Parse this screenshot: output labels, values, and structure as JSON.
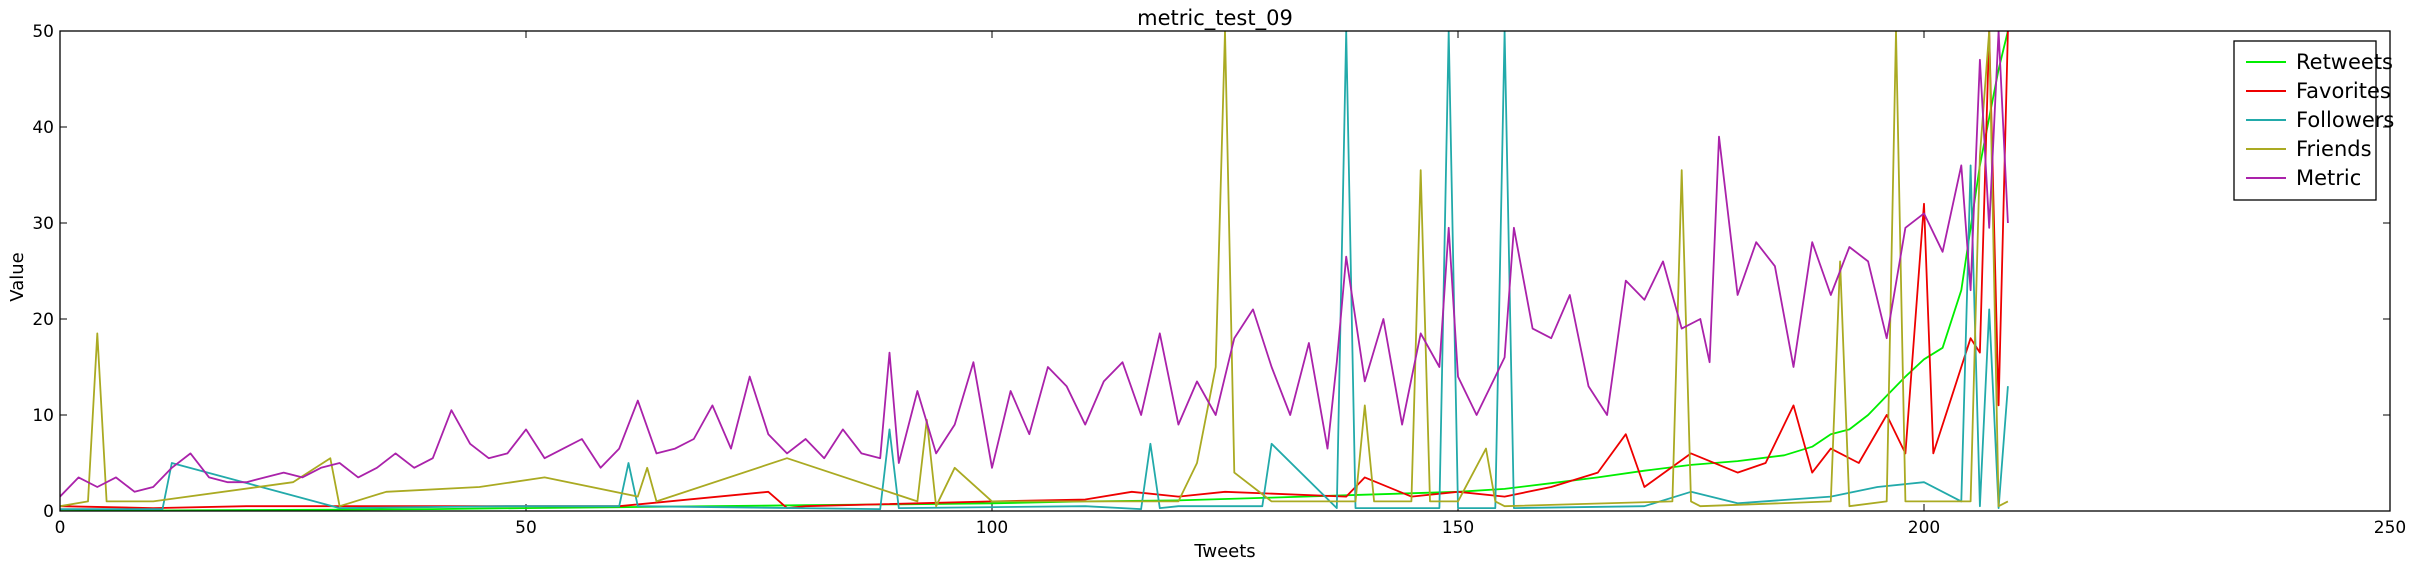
{
  "chart_data": {
    "type": "line",
    "title": "metric_test_09",
    "xlabel": "Tweets",
    "ylabel": "Value",
    "xlim": [
      0,
      250
    ],
    "ylim": [
      0,
      50
    ],
    "x_ticks": [
      0,
      50,
      100,
      150,
      200,
      250
    ],
    "y_ticks": [
      0,
      10,
      20,
      30,
      40,
      50
    ],
    "grid": false,
    "legend_position": "top-right",
    "series": [
      {
        "name": "Retweets",
        "color": "#00ee00",
        "x": [
          0,
          10,
          20,
          30,
          40,
          50,
          60,
          70,
          80,
          90,
          100,
          110,
          120,
          130,
          140,
          150,
          155,
          160,
          165,
          170,
          175,
          180,
          185,
          188,
          190,
          192,
          194,
          196,
          198,
          200,
          202,
          204,
          206,
          208,
          209
        ],
        "y": [
          0.0,
          0.05,
          0.1,
          0.15,
          0.2,
          0.3,
          0.4,
          0.5,
          0.6,
          0.7,
          0.8,
          1.0,
          1.1,
          1.4,
          1.7,
          2.0,
          2.3,
          2.9,
          3.5,
          4.2,
          4.8,
          5.2,
          5.8,
          6.7,
          8.0,
          8.5,
          10.0,
          12.0,
          14.0,
          15.8,
          17.0,
          23.0,
          36.0,
          46.0,
          50.0
        ]
      },
      {
        "name": "Favorites",
        "color": "#ee0000",
        "x": [
          0,
          10,
          20,
          40,
          60,
          76,
          78,
          80,
          100,
          110,
          115,
          120,
          125,
          138,
          140,
          145,
          150,
          155,
          160,
          165,
          168,
          170,
          175,
          180,
          183,
          186,
          188,
          190,
          193,
          196,
          198,
          200,
          201,
          203,
          205,
          206,
          207,
          208,
          209
        ],
        "y": [
          0.5,
          0.3,
          0.5,
          0.5,
          0.5,
          2.0,
          0.3,
          0.5,
          1.0,
          1.2,
          2.0,
          1.5,
          2.0,
          1.5,
          3.5,
          1.5,
          2.0,
          1.5,
          2.5,
          4.0,
          8.0,
          2.5,
          6.0,
          4.0,
          5.0,
          11.0,
          4.0,
          6.5,
          5.0,
          10.0,
          6.0,
          32.0,
          6.0,
          12.0,
          18.0,
          16.5,
          50.0,
          11.0,
          50.0
        ]
      },
      {
        "name": "Followers",
        "color": "#22aaaa",
        "x": [
          0,
          11,
          12,
          30,
          48,
          60,
          61,
          62,
          88,
          89,
          90,
          110,
          116,
          117,
          118,
          120,
          129,
          130,
          137,
          138,
          139,
          148,
          149,
          150,
          154,
          155,
          156,
          170,
          175,
          180,
          190,
          195,
          200,
          204,
          205,
          206,
          207,
          208,
          209
        ],
        "y": [
          0.2,
          0.2,
          5.0,
          0.3,
          0.5,
          0.5,
          5.0,
          0.5,
          0.2,
          8.5,
          0.3,
          0.5,
          0.2,
          7.0,
          0.3,
          0.5,
          0.5,
          7.0,
          0.3,
          50.0,
          0.3,
          0.3,
          50.0,
          0.3,
          0.3,
          50.0,
          0.3,
          0.5,
          2.0,
          0.8,
          1.5,
          2.5,
          3.0,
          1.0,
          36.0,
          0.5,
          21.0,
          0.3,
          13.0
        ]
      },
      {
        "name": "Friends",
        "color": "#aaaa22",
        "x": [
          0,
          3,
          4,
          5,
          10,
          25,
          29,
          30,
          35,
          45,
          52,
          62,
          63,
          64,
          78,
          92,
          93,
          94,
          96,
          100,
          120,
          122,
          124,
          125,
          126,
          130,
          139,
          140,
          141,
          145,
          146,
          147,
          150,
          153,
          154,
          155,
          173,
          174,
          175,
          176,
          190,
          191,
          192,
          196,
          197,
          198,
          205,
          206,
          207,
          208,
          209
        ],
        "y": [
          0.5,
          1.0,
          18.5,
          1.0,
          1.0,
          3.0,
          5.5,
          0.5,
          2.0,
          2.5,
          3.5,
          1.5,
          4.5,
          1.0,
          5.5,
          1.0,
          9.5,
          0.5,
          4.5,
          1.0,
          1.0,
          5.0,
          15.0,
          50.0,
          4.0,
          1.0,
          1.0,
          11.0,
          1.0,
          1.0,
          35.5,
          1.0,
          1.0,
          6.5,
          1.0,
          0.5,
          1.0,
          35.5,
          1.0,
          0.5,
          1.0,
          26.0,
          0.5,
          1.0,
          50.0,
          1.0,
          1.0,
          37.0,
          50.0,
          0.5,
          1.0
        ]
      },
      {
        "name": "Metric",
        "color": "#aa22aa",
        "x": [
          0,
          2,
          4,
          6,
          8,
          10,
          12,
          14,
          16,
          18,
          20,
          22,
          24,
          26,
          28,
          30,
          32,
          34,
          36,
          38,
          40,
          42,
          44,
          46,
          48,
          50,
          52,
          54,
          56,
          58,
          60,
          62,
          64,
          66,
          68,
          70,
          72,
          74,
          76,
          78,
          80,
          82,
          84,
          86,
          88,
          89,
          90,
          92,
          94,
          96,
          98,
          100,
          102,
          104,
          106,
          108,
          110,
          112,
          114,
          116,
          118,
          120,
          122,
          124,
          126,
          128,
          130,
          132,
          134,
          136,
          137,
          138,
          140,
          142,
          144,
          146,
          148,
          149,
          150,
          152,
          154,
          155,
          156,
          158,
          160,
          162,
          164,
          166,
          168,
          170,
          172,
          174,
          176,
          177,
          178,
          180,
          182,
          184,
          186,
          188,
          190,
          192,
          194,
          196,
          198,
          200,
          202,
          204,
          205,
          206,
          207,
          208,
          209
        ],
        "y": [
          1.5,
          3.5,
          2.5,
          3.5,
          2.0,
          2.5,
          4.5,
          6.0,
          3.5,
          3.0,
          3.0,
          3.5,
          4.0,
          3.5,
          4.5,
          5.0,
          3.5,
          4.5,
          6.0,
          4.5,
          5.5,
          10.5,
          7.0,
          5.5,
          6.0,
          8.5,
          5.5,
          6.5,
          7.5,
          4.5,
          6.5,
          11.5,
          6.0,
          6.5,
          7.5,
          11.0,
          6.5,
          14.0,
          8.0,
          6.0,
          7.5,
          5.5,
          8.5,
          6.0,
          5.5,
          16.5,
          5.0,
          12.5,
          6.0,
          9.0,
          15.5,
          4.5,
          12.5,
          8.0,
          15.0,
          13.0,
          9.0,
          13.5,
          15.5,
          10.0,
          18.5,
          9.0,
          13.5,
          10.0,
          18.0,
          21.0,
          15.0,
          10.0,
          17.5,
          6.5,
          15.5,
          26.5,
          13.5,
          20.0,
          9.0,
          18.5,
          15.0,
          29.5,
          14.0,
          10.0,
          14.0,
          16.0,
          29.5,
          19.0,
          18.0,
          22.5,
          13.0,
          10.0,
          24.0,
          22.0,
          26.0,
          19.0,
          20.0,
          15.5,
          39.0,
          22.5,
          28.0,
          25.5,
          15.0,
          28.0,
          22.5,
          27.5,
          26.0,
          18.0,
          29.5,
          31.0,
          27.0,
          36.0,
          23.0,
          47.0,
          29.5,
          50.0,
          30.0
        ]
      }
    ]
  }
}
